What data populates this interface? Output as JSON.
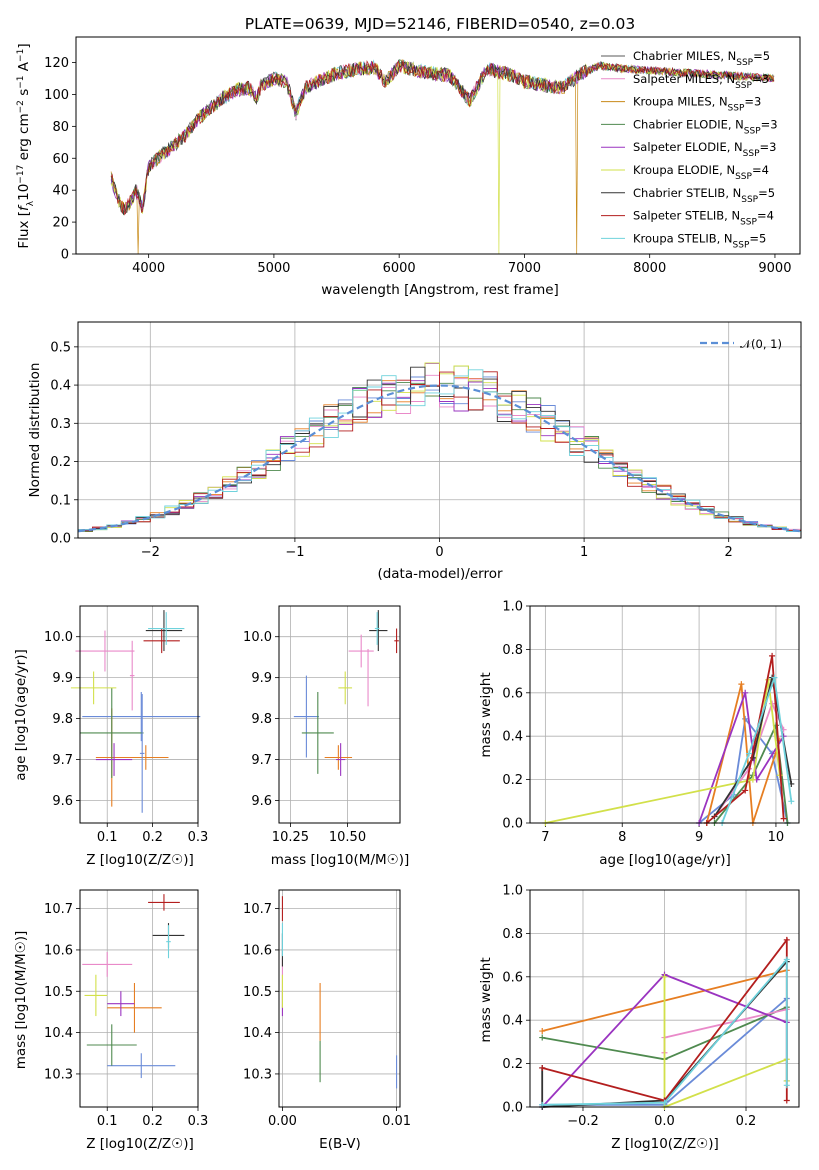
{
  "title": "PLATE=0639, MJD=52146, FIBERID=0540, z=0.03",
  "colors": [
    "#5a5a5a",
    "#e98ac9",
    "#c88a18",
    "#4f8a4f",
    "#9a34c0",
    "#d2e04a",
    "#333333",
    "#b31e1e",
    "#6fd2dc"
  ],
  "colors2": [
    "#6a8bd8",
    "#e67e22",
    "#4f8a4f",
    "#e98ac9",
    "#9a34c0",
    "#d2e04a",
    "#333333",
    "#b31e1e",
    "#6fd2dc"
  ],
  "legend_labels": [
    "Chabrier MILES, N",
    "Salpeter MILES, N",
    "Kroupa MILES, N",
    "Chabrier ELODIE, N",
    "Salpeter ELODIE, N",
    "Kroupa ELODIE, N",
    "Chabrier STELIB, N",
    "Salpeter STELIB, N",
    "Kroupa STELIB, N"
  ],
  "legend_sub": "SSP",
  "legend_values": [
    "=5",
    "=3",
    "=3",
    "=3",
    "=3",
    "=4",
    "=5",
    "=4",
    "=5"
  ],
  "normal_label": "𝒩(0, 1)",
  "chart_data": [
    {
      "type": "line",
      "id": "spectrum",
      "xlabel": "wavelength [Angstrom, rest frame]",
      "ylabel": "Flux [f_λ 10^-17 erg cm^-2 s^-1 A^-1]",
      "xlim": [
        3420,
        9200
      ],
      "ylim": [
        0,
        136
      ],
      "xticks": [
        4000,
        5000,
        6000,
        7000,
        8000,
        9000
      ],
      "yticks": [
        0,
        20,
        40,
        60,
        80,
        100,
        120
      ],
      "x": [
        3700,
        3750,
        3800,
        3850,
        3900,
        3950,
        4000,
        4100,
        4200,
        4300,
        4400,
        4500,
        4600,
        4700,
        4800,
        4861,
        4900,
        5000,
        5100,
        5175,
        5250,
        5400,
        5500,
        5600,
        5700,
        5800,
        5890,
        6000,
        6200,
        6400,
        6563,
        6700,
        6900,
        7000,
        7150,
        7300,
        7450,
        7600,
        7800,
        8000,
        8200,
        8400,
        8600,
        8800,
        9000
      ],
      "y": [
        48,
        35,
        28,
        32,
        40,
        28,
        55,
        62,
        68,
        75,
        85,
        92,
        98,
        103,
        104,
        98,
        106,
        110,
        108,
        88,
        104,
        110,
        113,
        115,
        116,
        117,
        108,
        118,
        114,
        112,
        96,
        116,
        112,
        108,
        106,
        104,
        113,
        118,
        116,
        115,
        114,
        113,
        112,
        111,
        110
      ],
      "dips": [
        {
          "series": 5,
          "x": 6800
        },
        {
          "series": 2,
          "x": 7420
        },
        {
          "series": 2,
          "x": 3920
        }
      ]
    },
    {
      "type": "histogram",
      "id": "residuals",
      "xlabel": "(data-model)/error",
      "ylabel": "Normed distribution",
      "xlim": [
        -2.5,
        2.5
      ],
      "ylim": [
        0,
        0.565
      ],
      "xticks": [
        -2,
        -1,
        0,
        1,
        2
      ],
      "yticks": [
        0.0,
        0.1,
        0.2,
        0.3,
        0.4,
        0.5
      ],
      "bins": 50,
      "normal": {
        "mean": 0,
        "sigma": 1
      }
    },
    {
      "type": "scatter",
      "id": "age_vs_Z",
      "xlabel": "Z [log10(Z/Z☉)]",
      "ylabel": "age  [log10(age/yr)]",
      "xlim": [
        0.04,
        0.3
      ],
      "ylim": [
        9.545,
        10.075
      ],
      "xticks": [
        0.1,
        0.2,
        0.3
      ],
      "yticks": [
        9.6,
        9.7,
        9.8,
        9.9,
        10.0
      ],
      "points": [
        {
          "c": 0,
          "x": 0.175,
          "y": 9.805,
          "ex": 0.13,
          "ey": 0.06
        },
        {
          "c": 1,
          "x": 0.11,
          "y": 9.705,
          "ex": 0.035,
          "ey": 0.12
        },
        {
          "c": 2,
          "x": 0.11,
          "y": 9.765,
          "ex": 0.07,
          "ey": 0.11
        },
        {
          "c": 3,
          "x": 0.095,
          "y": 9.965,
          "ex": 0.065,
          "ey": 0.05
        },
        {
          "c": 4,
          "x": 0.115,
          "y": 9.7,
          "ex": 0.04,
          "ey": 0.04
        },
        {
          "c": 5,
          "x": 0.07,
          "y": 9.875,
          "ex": 0.05,
          "ey": 0.04
        },
        {
          "c": 6,
          "x": 0.225,
          "y": 10.015,
          "ex": 0.04,
          "ey": 0.05
        },
        {
          "c": 7,
          "x": 0.22,
          "y": 9.99,
          "ex": 0.04,
          "ey": 0.03
        },
        {
          "c": 8,
          "x": 0.23,
          "y": 10.02,
          "ex": 0.04,
          "ey": 0.04
        },
        {
          "c": 1,
          "x": 0.185,
          "y": 9.705,
          "ex": 0.05,
          "ey": 0.03
        },
        {
          "c": 0,
          "x": 0.177,
          "y": 9.715,
          "ex": 0.005,
          "ey": 0.145
        },
        {
          "c": 3,
          "x": 0.155,
          "y": 9.905,
          "ex": 0.005,
          "ey": 0.085
        }
      ]
    },
    {
      "type": "scatter",
      "id": "age_vs_mass",
      "xlabel": "mass [log10(M/M☉)]",
      "ylabel": "",
      "xlim": [
        10.2,
        10.73
      ],
      "ylim": [
        9.545,
        10.075
      ],
      "xticks": [
        10.25,
        10.5
      ],
      "yticks": [
        9.6,
        9.7,
        9.8,
        9.9,
        10.0
      ],
      "points": [
        {
          "c": 0,
          "x": 10.32,
          "y": 9.805,
          "ex": 0.055,
          "ey": 0.1
        },
        {
          "c": 1,
          "x": 10.46,
          "y": 9.705,
          "ex": 0.06,
          "ey": 0.03
        },
        {
          "c": 2,
          "x": 10.37,
          "y": 9.765,
          "ex": 0.07,
          "ey": 0.1
        },
        {
          "c": 3,
          "x": 10.56,
          "y": 9.965,
          "ex": 0.055,
          "ey": 0.04
        },
        {
          "c": 4,
          "x": 10.47,
          "y": 9.7,
          "ex": 0.02,
          "ey": 0.04
        },
        {
          "c": 5,
          "x": 10.49,
          "y": 9.875,
          "ex": 0.03,
          "ey": 0.04
        },
        {
          "c": 6,
          "x": 10.635,
          "y": 10.015,
          "ex": 0.04,
          "ey": 0.05
        },
        {
          "c": 7,
          "x": 10.715,
          "y": 9.99,
          "ex": 0.01,
          "ey": 0.03
        },
        {
          "c": 8,
          "x": 10.63,
          "y": 10.02,
          "ex": 0.01,
          "ey": 0.04
        },
        {
          "c": 3,
          "x": 10.59,
          "y": 9.9,
          "ex": 0.002,
          "ey": 0.07
        }
      ]
    },
    {
      "type": "line",
      "id": "weights_vs_age",
      "xlabel": "age  [log10(age/yr)]",
      "ylabel": "mass weight",
      "xlim": [
        6.8,
        10.3
      ],
      "ylim": [
        0,
        1.0
      ],
      "xticks": [
        7,
        8,
        9,
        10
      ],
      "yticks": [
        0.0,
        0.2,
        0.4,
        0.6,
        0.8,
        1.0
      ],
      "series": [
        {
          "c": 0,
          "x": [
            9.0,
            9.45,
            9.6,
            9.95,
            10.15
          ],
          "y": [
            0.0,
            0.13,
            0.48,
            0.32,
            0.0
          ]
        },
        {
          "c": 1,
          "x": [
            9.1,
            9.55,
            9.7,
            10.05
          ],
          "y": [
            0.0,
            0.64,
            0.0,
            0.38
          ]
        },
        {
          "c": 2,
          "x": [
            9.2,
            9.7,
            10.0,
            10.15
          ],
          "y": [
            0.0,
            0.22,
            0.45,
            0.0
          ]
        },
        {
          "c": 3,
          "x": [
            9.2,
            9.65,
            9.95,
            10.1
          ],
          "y": [
            0.03,
            0.25,
            0.55,
            0.43
          ]
        },
        {
          "c": 4,
          "x": [
            9.0,
            9.6,
            9.75,
            10.1
          ],
          "y": [
            0.0,
            0.6,
            0.2,
            0.4
          ]
        },
        {
          "c": 5,
          "x": [
            7.0,
            9.7,
            9.9,
            10.05
          ],
          "y": [
            0.0,
            0.2,
            0.66,
            0.22
          ]
        },
        {
          "c": 6,
          "x": [
            9.2,
            9.7,
            9.95,
            10.2
          ],
          "y": [
            0.03,
            0.3,
            0.67,
            0.18
          ]
        },
        {
          "c": 7,
          "x": [
            9.1,
            9.6,
            9.95,
            10.1
          ],
          "y": [
            0.0,
            0.15,
            0.77,
            0.02
          ]
        },
        {
          "c": 8,
          "x": [
            9.3,
            9.65,
            9.98,
            10.2
          ],
          "y": [
            0.0,
            0.32,
            0.67,
            0.1
          ]
        }
      ]
    },
    {
      "type": "scatter",
      "id": "mass_vs_Z",
      "xlabel": "Z [log10(Z/Z☉)]",
      "ylabel": "mass [log10(M/M☉)]",
      "xlim": [
        0.04,
        0.3
      ],
      "ylim": [
        10.22,
        10.745
      ],
      "xticks": [
        0.1,
        0.2,
        0.3
      ],
      "yticks": [
        10.3,
        10.4,
        10.5,
        10.6,
        10.7
      ],
      "points": [
        {
          "c": 0,
          "x": 0.175,
          "y": 10.32,
          "ex": 0.075,
          "ey": 0.03
        },
        {
          "c": 1,
          "x": 0.16,
          "y": 10.46,
          "ex": 0.06,
          "ey": 0.06
        },
        {
          "c": 2,
          "x": 0.11,
          "y": 10.37,
          "ex": 0.055,
          "ey": 0.05
        },
        {
          "c": 3,
          "x": 0.1,
          "y": 10.565,
          "ex": 0.055,
          "ey": 0.03
        },
        {
          "c": 4,
          "x": 0.13,
          "y": 10.47,
          "ex": 0.03,
          "ey": 0.03
        },
        {
          "c": 5,
          "x": 0.075,
          "y": 10.49,
          "ex": 0.025,
          "ey": 0.05
        },
        {
          "c": 6,
          "x": 0.235,
          "y": 10.635,
          "ex": 0.035,
          "ey": 0.03
        },
        {
          "c": 7,
          "x": 0.225,
          "y": 10.715,
          "ex": 0.035,
          "ey": 0.02
        },
        {
          "c": 8,
          "x": 0.235,
          "y": 10.62,
          "ex": 0.005,
          "ey": 0.04
        }
      ]
    },
    {
      "type": "scatter",
      "id": "mass_vs_ebv",
      "xlabel": "E(B-V)",
      "ylabel": "",
      "xlim": [
        -0.0003,
        0.0103
      ],
      "ylim": [
        10.22,
        10.745
      ],
      "xticks": [
        0.0,
        0.01
      ],
      "yticks": [
        10.3,
        10.4,
        10.5,
        10.6,
        10.7
      ],
      "points": [
        {
          "c": 0,
          "x": 0.01,
          "y": 10.305,
          "ex": 0,
          "ey": 0.04
        },
        {
          "c": 1,
          "x": 0.0033,
          "y": 10.45,
          "ex": 0,
          "ey": 0.07
        },
        {
          "c": 2,
          "x": 0.0033,
          "y": 10.33,
          "ex": 0,
          "ey": 0.05
        },
        {
          "c": 3,
          "x": 0.0,
          "y": 10.54,
          "ex": 0,
          "ey": 0.04
        },
        {
          "c": 4,
          "x": 0.0,
          "y": 10.47,
          "ex": 0,
          "ey": 0.03
        },
        {
          "c": 5,
          "x": 0.0,
          "y": 10.5,
          "ex": 0,
          "ey": 0.04
        },
        {
          "c": 6,
          "x": 0.0,
          "y": 10.6,
          "ex": 0,
          "ey": 0.04
        },
        {
          "c": 7,
          "x": 0.0,
          "y": 10.7,
          "ex": 0,
          "ey": 0.03
        },
        {
          "c": 8,
          "x": 0.0,
          "y": 10.625,
          "ex": 0,
          "ey": 0.04
        }
      ]
    },
    {
      "type": "line",
      "id": "weights_vs_Z",
      "xlabel": "Z [log10(Z/Z☉)]",
      "ylabel": "mass weight",
      "xlim": [
        -0.33,
        0.33
      ],
      "ylim": [
        0,
        1.0
      ],
      "xticks": [
        -0.2,
        0.0,
        0.2
      ],
      "yticks": [
        0.0,
        0.2,
        0.4,
        0.6,
        0.8,
        1.0
      ],
      "series": [
        {
          "c": 0,
          "x": [
            -0.3,
            0.0,
            0.3,
            0.3
          ],
          "y": [
            0.01,
            0.01,
            0.5,
            0.12
          ]
        },
        {
          "c": 1,
          "x": [
            -0.3,
            0.3
          ],
          "y": [
            0.35,
            0.63
          ]
        },
        {
          "c": 2,
          "x": [
            -0.3,
            0.0,
            0.3
          ],
          "y": [
            0.32,
            0.22,
            0.46
          ]
        },
        {
          "c": 3,
          "x": [
            0.0,
            0.0,
            0.3
          ],
          "y": [
            0.25,
            0.32,
            0.45
          ]
        },
        {
          "c": 4,
          "x": [
            -0.3,
            0.0,
            0.3
          ],
          "y": [
            0.0,
            0.61,
            0.39
          ]
        },
        {
          "c": 5,
          "x": [
            0.0,
            0.0,
            0.3,
            0.3
          ],
          "y": [
            0.6,
            0.0,
            0.22,
            0.12
          ]
        },
        {
          "c": 6,
          "x": [
            -0.3,
            -0.3,
            0.0,
            0.3
          ],
          "y": [
            0.18,
            0.0,
            0.03,
            0.67
          ]
        },
        {
          "c": 7,
          "x": [
            -0.3,
            0.0,
            0.3,
            0.3
          ],
          "y": [
            0.18,
            0.03,
            0.77,
            0.03
          ]
        },
        {
          "c": 8,
          "x": [
            -0.3,
            0.0,
            0.3,
            0.3
          ],
          "y": [
            0.01,
            0.02,
            0.68,
            0.1
          ]
        }
      ]
    }
  ]
}
